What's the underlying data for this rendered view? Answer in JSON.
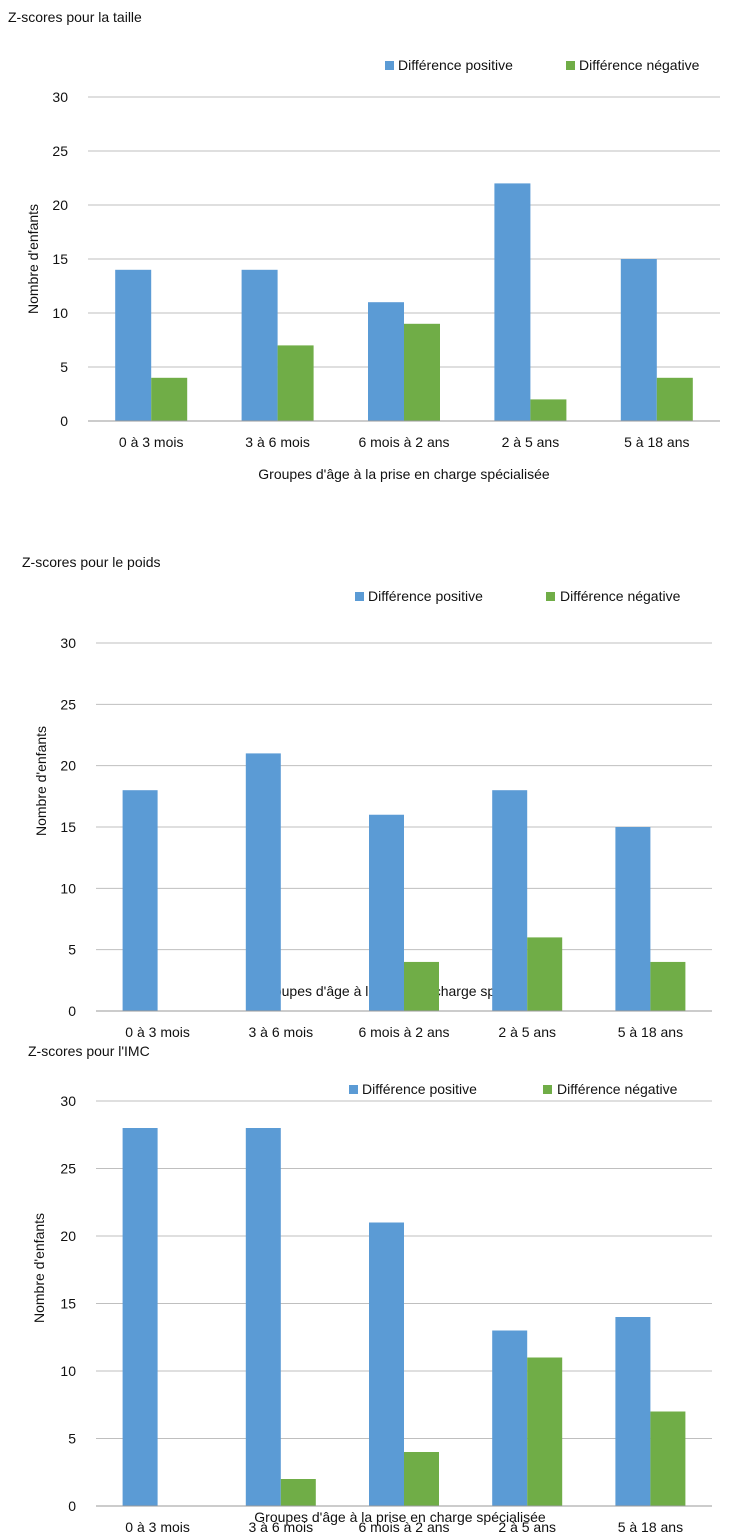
{
  "colors": {
    "positive": "#5b9bd5",
    "negative": "#70ad47"
  },
  "chart_data": [
    {
      "type": "bar",
      "title": "Z-scores pour la taille",
      "xlabel": "Groupes d'âge à la prise en charge spécialisée",
      "ylabel": "Nombre d'enfants",
      "ylim": [
        0,
        30
      ],
      "yticks": [
        0,
        5,
        10,
        15,
        20,
        25,
        30
      ],
      "grid": true,
      "legend_position": "top-right",
      "categories": [
        "0 à 3 mois",
        "3 à 6 mois",
        "6 mois à 2 ans",
        "2 à 5 ans",
        "5 à 18 ans"
      ],
      "series": [
        {
          "name": "Différence positive",
          "values": [
            14,
            14,
            11,
            22,
            15
          ]
        },
        {
          "name": "Différence négative",
          "values": [
            4,
            7,
            9,
            2,
            4
          ]
        }
      ]
    },
    {
      "type": "bar",
      "title": "Z-scores pour le poids",
      "xlabel": "Groupes d'âge à la prise en charge spécialisée",
      "ylabel": "Nombre d'enfants",
      "ylim": [
        0,
        30
      ],
      "yticks": [
        0,
        5,
        10,
        15,
        20,
        25,
        30
      ],
      "grid": true,
      "legend_position": "top-right",
      "categories": [
        "0 à 3 mois",
        "3 à 6 mois",
        "6 mois à 2 ans",
        "2 à 5 ans",
        "5 à 18 ans"
      ],
      "series": [
        {
          "name": "Différence positive",
          "values": [
            18,
            21,
            16,
            18,
            15
          ]
        },
        {
          "name": "Différence négative",
          "values": [
            0,
            0,
            4,
            6,
            4
          ]
        }
      ]
    },
    {
      "type": "bar",
      "title": "Z-scores pour l'IMC",
      "xlabel": "Groupes d'âge à la prise en charge spécialisée",
      "ylabel": "Nombre d'enfants",
      "ylim": [
        0,
        30
      ],
      "yticks": [
        0,
        5,
        10,
        15,
        20,
        25,
        30
      ],
      "grid": true,
      "legend_position": "top-right",
      "categories": [
        "0 à 3 mois",
        "3 à 6 mois",
        "6 mois à 2 ans",
        "2 à 5 ans",
        "5 à 18 ans"
      ],
      "series": [
        {
          "name": "Différence positive",
          "values": [
            28,
            28,
            21,
            13,
            14
          ]
        },
        {
          "name": "Différence négative",
          "values": [
            0,
            2,
            4,
            11,
            7
          ]
        }
      ]
    }
  ]
}
